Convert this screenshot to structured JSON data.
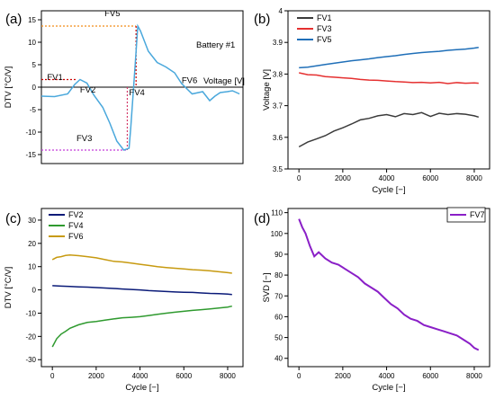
{
  "chart_data": [
    {
      "panel": "(a)",
      "type": "line",
      "ylabel": "DTV [°C/V]",
      "xlabel": "",
      "ylim": [
        -17,
        17
      ],
      "yticks": [
        15,
        10,
        5,
        0,
        -5,
        -10,
        -15
      ],
      "voltage_label": "Voltage [V]",
      "annotation": "Battery #1",
      "colors": {
        "curve": "#4aa8dc",
        "fv1": "#cc0000",
        "fv5": "#f28c18",
        "fv3": "#c43bd9",
        "fv4": "#d43a6a"
      },
      "markers": [
        {
          "name": "FV1",
          "x": 0.065,
          "y": 1.6
        },
        {
          "name": "FV2",
          "x": 0.44,
          "y": -1.2
        },
        {
          "name": "FV3",
          "x": 0.4,
          "y": -12.0
        },
        {
          "name": "FV4",
          "x": 1.0,
          "y": -1.8
        },
        {
          "name": "FV5",
          "x": 0.72,
          "y": 15.8
        },
        {
          "name": "FV6",
          "x": 1.6,
          "y": 0.9
        }
      ],
      "series": [
        {
          "x": [
            0,
            0.15,
            0.3,
            0.38,
            0.44,
            0.52,
            0.6,
            0.7,
            0.78,
            0.86,
            0.94,
            1.0,
            1.02,
            1.07,
            1.1,
            1.13,
            1.22,
            1.32,
            1.42,
            1.52,
            1.6,
            1.72,
            1.84,
            1.92,
            1.98,
            2.04,
            2.12,
            2.18,
            2.26
          ],
          "y": [
            -2.0,
            -2.1,
            -1.5,
            0.6,
            1.7,
            0.9,
            -1.8,
            -4.5,
            -8.0,
            -12.0,
            -14.0,
            -13.6,
            -9.0,
            5.0,
            13.6,
            12.5,
            8.0,
            5.5,
            4.5,
            3.2,
            0.8,
            -1.5,
            -1.0,
            -3.0,
            -2.0,
            -1.2,
            -1.0,
            -0.8,
            -1.5
          ]
        }
      ]
    },
    {
      "panel": "(b)",
      "type": "line",
      "xlabel": "Cycle [−]",
      "ylabel": "Voltage [V]",
      "xlim": [
        -500,
        8700
      ],
      "ylim": [
        3.5,
        4.0
      ],
      "xticks": [
        0,
        2000,
        4000,
        6000,
        8000
      ],
      "yticks": [
        3.5,
        3.6,
        3.7,
        3.8,
        3.9,
        4.0
      ],
      "series": [
        {
          "name": "FV1",
          "color": "#3b3b3b",
          "x": [
            0,
            400,
            800,
            1200,
            1600,
            2000,
            2400,
            2800,
            3200,
            3600,
            4000,
            4400,
            4800,
            5200,
            5600,
            6000,
            6400,
            6800,
            7200,
            7600,
            8000,
            8200
          ],
          "y": [
            3.57,
            3.585,
            3.595,
            3.605,
            3.62,
            3.63,
            3.642,
            3.655,
            3.66,
            3.668,
            3.672,
            3.665,
            3.675,
            3.672,
            3.678,
            3.666,
            3.676,
            3.672,
            3.675,
            3.673,
            3.668,
            3.664
          ]
        },
        {
          "name": "FV3",
          "color": "#e53030",
          "x": [
            0,
            400,
            800,
            1200,
            1600,
            2000,
            2400,
            2800,
            3200,
            3600,
            4000,
            4400,
            4800,
            5200,
            5600,
            6000,
            6400,
            6800,
            7200,
            7600,
            8000,
            8200
          ],
          "y": [
            3.804,
            3.798,
            3.797,
            3.792,
            3.79,
            3.788,
            3.786,
            3.783,
            3.781,
            3.78,
            3.778,
            3.776,
            3.775,
            3.773,
            3.774,
            3.772,
            3.774,
            3.77,
            3.773,
            3.771,
            3.772,
            3.771
          ]
        },
        {
          "name": "FV5",
          "color": "#1f6fb8",
          "x": [
            0,
            400,
            800,
            1200,
            1600,
            2000,
            2400,
            2800,
            3200,
            3600,
            4000,
            4400,
            4800,
            5200,
            5600,
            6000,
            6400,
            6800,
            7200,
            7600,
            8000,
            8200
          ],
          "y": [
            3.82,
            3.822,
            3.826,
            3.83,
            3.834,
            3.838,
            3.842,
            3.845,
            3.848,
            3.852,
            3.855,
            3.858,
            3.862,
            3.865,
            3.868,
            3.87,
            3.872,
            3.875,
            3.877,
            3.879,
            3.882,
            3.884
          ]
        }
      ]
    },
    {
      "panel": "(c)",
      "type": "line",
      "xlabel": "Cycle [−]",
      "ylabel": "DTV [°C/V]",
      "xlim": [
        -500,
        8700
      ],
      "ylim": [
        -33,
        35
      ],
      "xticks": [
        0,
        2000,
        4000,
        6000,
        8000
      ],
      "yticks": [
        30,
        20,
        10,
        0,
        -10,
        -20,
        -30
      ],
      "series": [
        {
          "name": "FV2",
          "color": "#0a1a78",
          "x": [
            0,
            400,
            800,
            1200,
            1600,
            2000,
            2400,
            2800,
            3200,
            3600,
            4000,
            4400,
            4800,
            5200,
            5600,
            6000,
            6400,
            6800,
            7200,
            7600,
            8000,
            8200
          ],
          "y": [
            1.8,
            1.6,
            1.5,
            1.3,
            1.2,
            1.0,
            0.8,
            0.6,
            0.4,
            0.2,
            0.0,
            -0.3,
            -0.5,
            -0.7,
            -0.9,
            -1.0,
            -1.1,
            -1.3,
            -1.5,
            -1.6,
            -1.8,
            -2.0
          ]
        },
        {
          "name": "FV4",
          "color": "#2f9a2f",
          "x": [
            0,
            200,
            400,
            600,
            800,
            1200,
            1600,
            2000,
            2400,
            2800,
            3200,
            3600,
            4000,
            4400,
            4800,
            5200,
            5600,
            6000,
            6400,
            6800,
            7200,
            7600,
            8000,
            8200
          ],
          "y": [
            -24.5,
            -21.0,
            -19.0,
            -17.8,
            -16.5,
            -15.0,
            -14.0,
            -13.6,
            -13.0,
            -12.5,
            -12.0,
            -11.8,
            -11.5,
            -11.0,
            -10.5,
            -10.0,
            -9.6,
            -9.2,
            -8.8,
            -8.5,
            -8.2,
            -7.8,
            -7.4,
            -7.0
          ]
        },
        {
          "name": "FV6",
          "color": "#c79a10",
          "x": [
            0,
            200,
            400,
            600,
            800,
            1200,
            1600,
            2000,
            2400,
            2800,
            3200,
            3600,
            4000,
            4400,
            4800,
            5200,
            5600,
            6000,
            6400,
            6800,
            7200,
            7600,
            8000,
            8200
          ],
          "y": [
            13.0,
            14.0,
            14.3,
            14.8,
            15.0,
            14.7,
            14.3,
            13.8,
            13.0,
            12.3,
            12.0,
            11.5,
            11.0,
            10.5,
            10.0,
            9.6,
            9.3,
            9.0,
            8.7,
            8.5,
            8.2,
            7.8,
            7.4,
            7.2
          ]
        }
      ]
    },
    {
      "panel": "(d)",
      "type": "line",
      "xlabel": "Cycle [−]",
      "ylabel": "SVD [−]",
      "xlim": [
        -500,
        8700
      ],
      "ylim": [
        36,
        112
      ],
      "xticks": [
        0,
        2000,
        4000,
        6000,
        8000
      ],
      "yticks": [
        110,
        100,
        90,
        80,
        70,
        60,
        50,
        40
      ],
      "series": [
        {
          "name": "FV7",
          "color": "#8a1fc7",
          "x": [
            0,
            150,
            300,
            500,
            700,
            900,
            1200,
            1500,
            1800,
            2100,
            2400,
            2700,
            3000,
            3300,
            3600,
            3900,
            4200,
            4500,
            4800,
            5100,
            5400,
            5700,
            6000,
            6300,
            6600,
            6900,
            7200,
            7500,
            7800,
            8000,
            8200
          ],
          "y": [
            107,
            103,
            100,
            94,
            89,
            91,
            88,
            86,
            85,
            83,
            81,
            79,
            76,
            74,
            72,
            69,
            66,
            64,
            61,
            59,
            58,
            56,
            55,
            54,
            53,
            52,
            51,
            49,
            47,
            45,
            44
          ]
        }
      ]
    }
  ]
}
